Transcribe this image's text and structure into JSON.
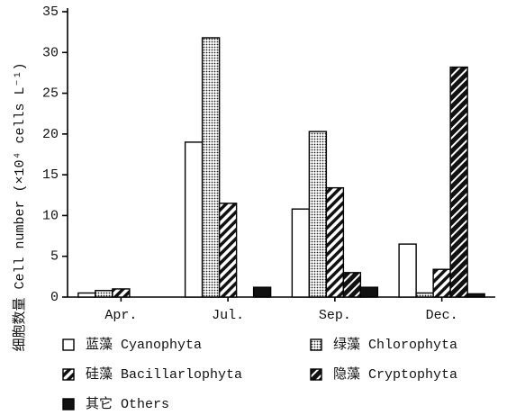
{
  "chart_data": {
    "type": "bar",
    "y_label": "细胞数量 Cell number (×10⁴ cells L⁻¹)",
    "categories": [
      "Apr.",
      "Jul.",
      "Sep.",
      "Dec."
    ],
    "series": [
      {
        "name": "蓝藻 Cyanophyta",
        "color": "#ffffff",
        "pattern": "none",
        "values": [
          0.5,
          19,
          10.8,
          6.5
        ]
      },
      {
        "name": "绿藻 Chlorophyta",
        "color": "#ffffff",
        "pattern": "dots",
        "values": [
          0.8,
          31.8,
          20.3,
          0.5
        ]
      },
      {
        "name": "硅藻 Bacillarlophyta",
        "color": "#ffffff",
        "pattern": "hatch",
        "values": [
          1.0,
          11.5,
          13.4,
          3.4
        ]
      },
      {
        "name": "隐藻 Cryptophyta",
        "color": "#111111",
        "pattern": "hatch-dark",
        "values": [
          0,
          0,
          3.0,
          28.2
        ]
      },
      {
        "name": "其它 Others",
        "color": "#111111",
        "pattern": "none",
        "values": [
          0,
          1.2,
          1.2,
          0.4
        ]
      }
    ],
    "ylim": [
      0,
      35
    ],
    "yticks": [
      0,
      5,
      10,
      15,
      20,
      25,
      30,
      35
    ],
    "grid": false
  }
}
